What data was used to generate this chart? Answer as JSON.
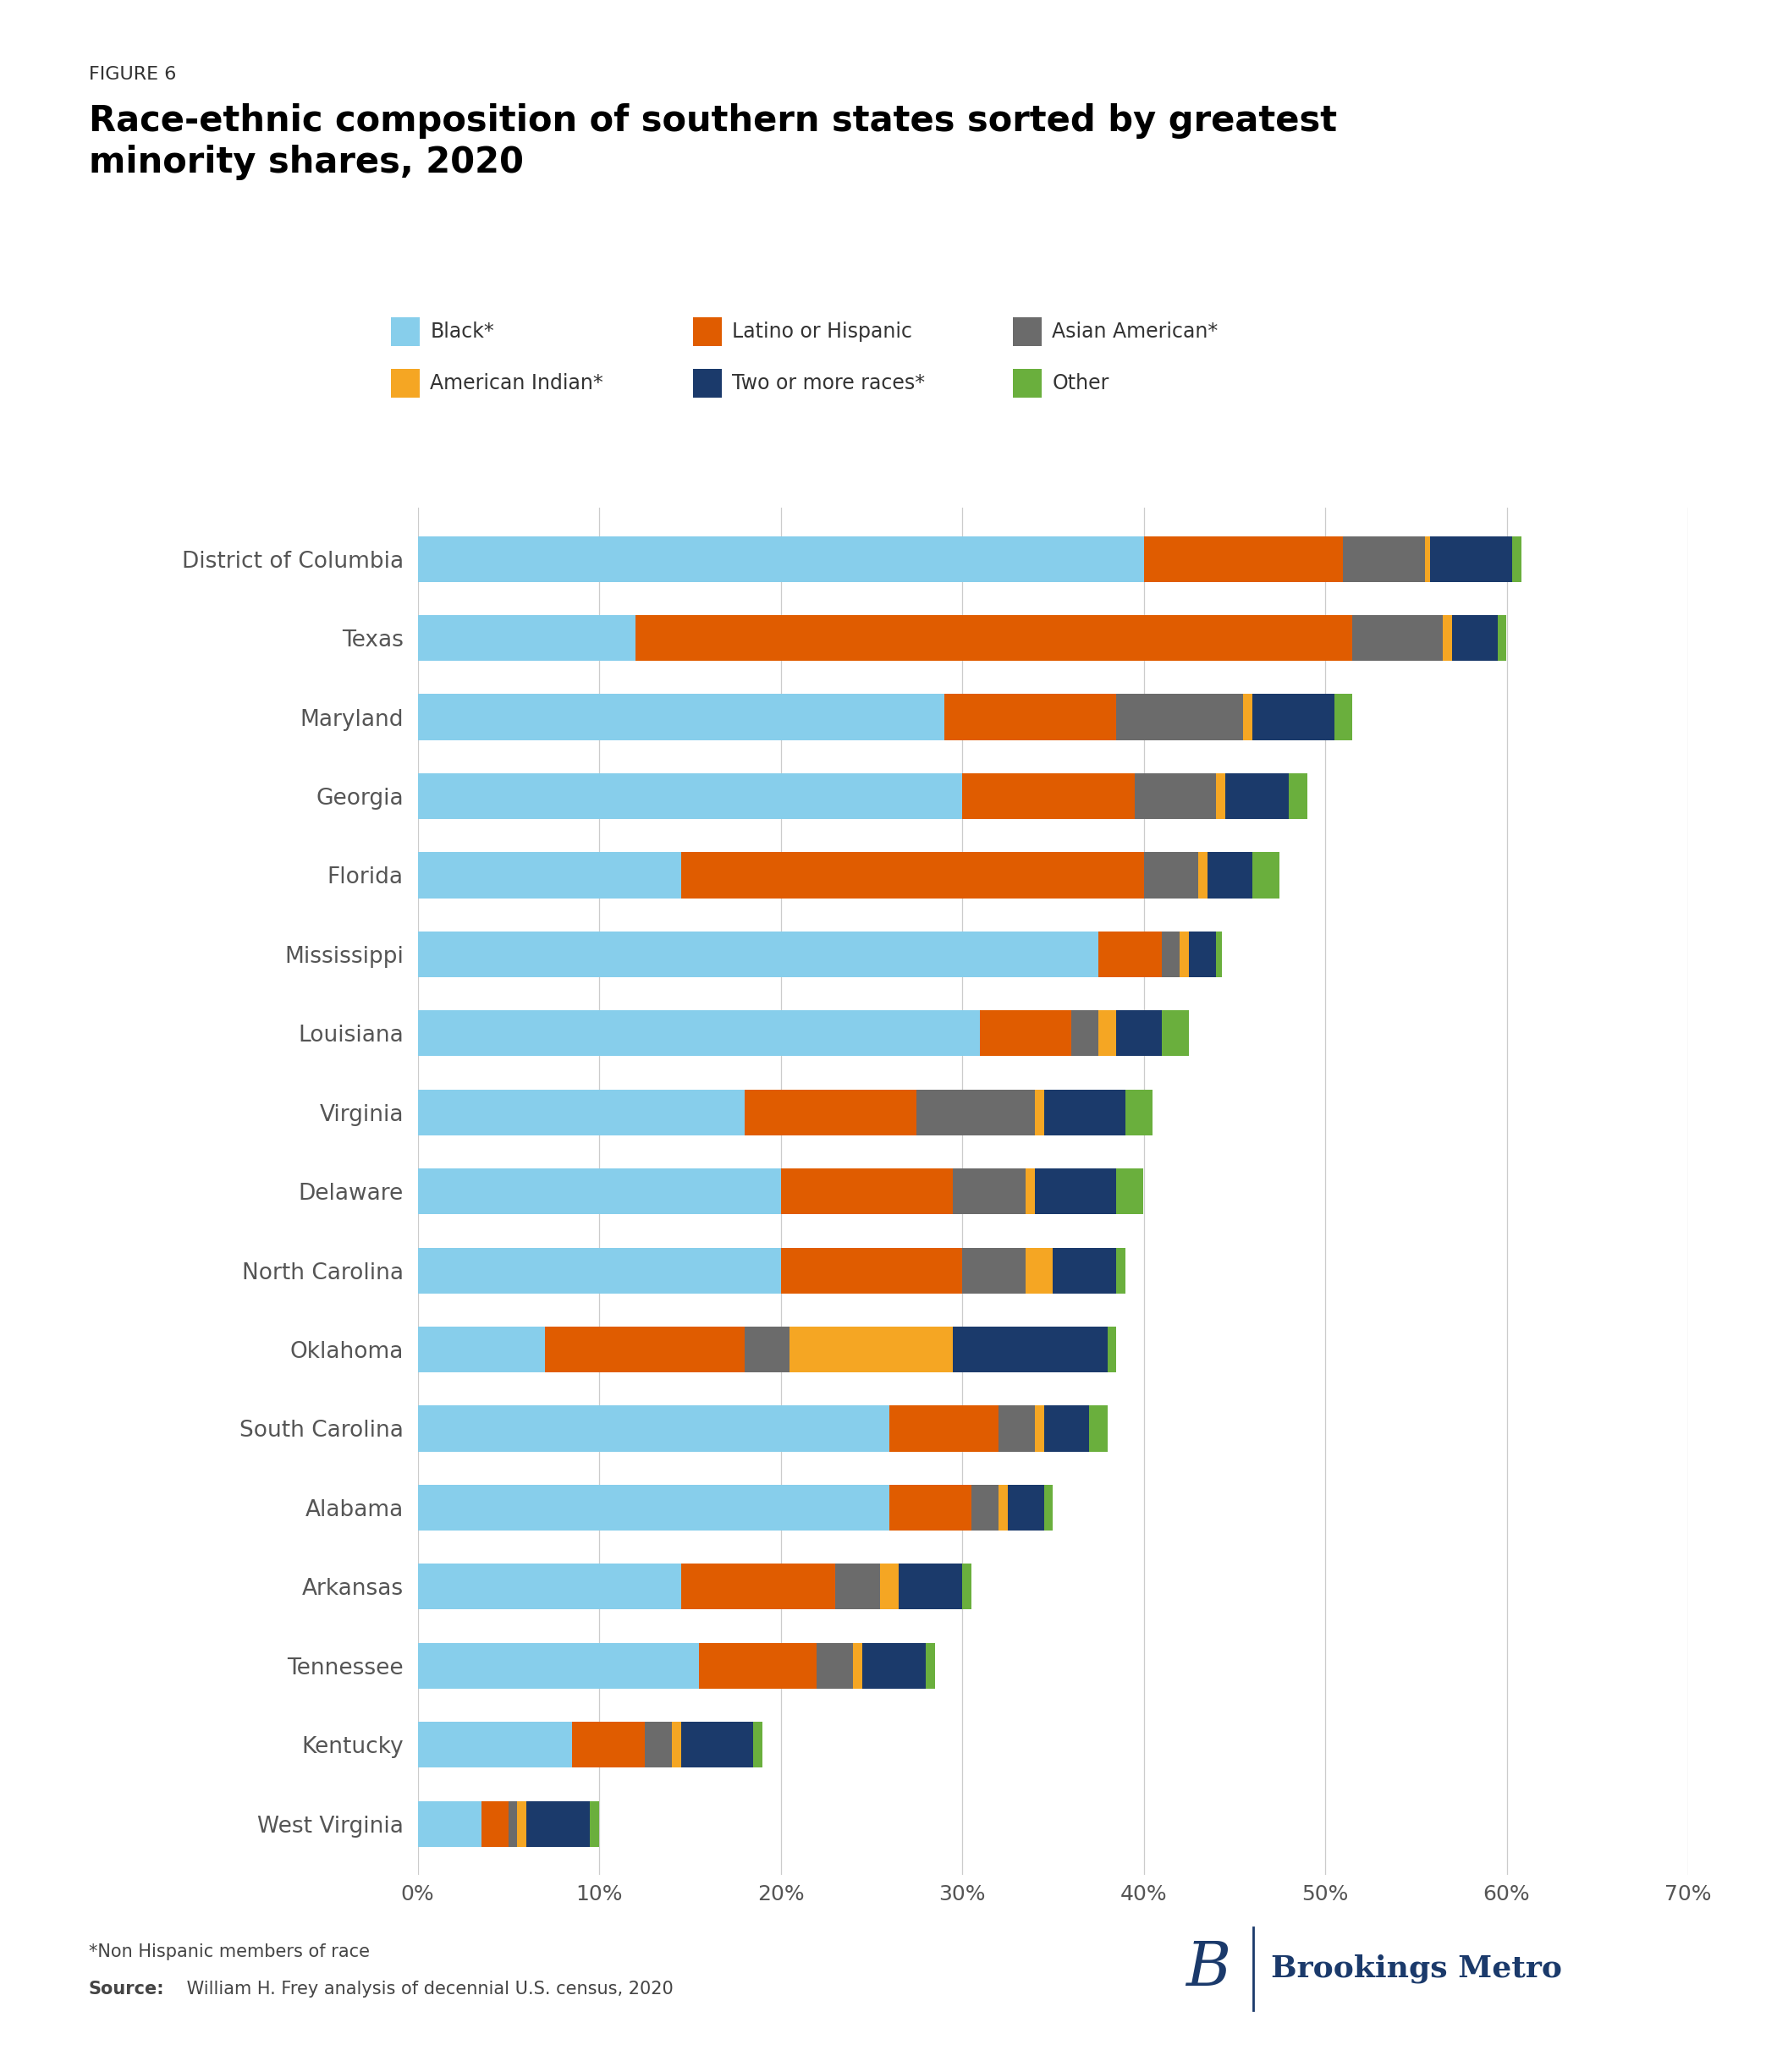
{
  "figure_label": "FIGURE 6",
  "title_line1": "Race-ethnic composition of southern states sorted by greatest",
  "title_line2": "minority shares, 2020",
  "states": [
    "District of Columbia",
    "Texas",
    "Maryland",
    "Georgia",
    "Florida",
    "Mississippi",
    "Louisiana",
    "Virginia",
    "Delaware",
    "North Carolina",
    "Oklahoma",
    "South Carolina",
    "Alabama",
    "Arkansas",
    "Tennessee",
    "Kentucky",
    "West Virginia"
  ],
  "categories": [
    "Black*",
    "Latino or Hispanic",
    "Asian American*",
    "American Indian*",
    "Two or more races*",
    "Other"
  ],
  "colors": [
    "#87CEEB",
    "#E05C00",
    "#6B6B6B",
    "#F5A623",
    "#1B3A6B",
    "#6AAF3D"
  ],
  "data": [
    [
      40.0,
      11.0,
      4.5,
      0.3,
      4.5,
      0.5
    ],
    [
      12.0,
      39.5,
      5.0,
      0.5,
      2.5,
      0.5
    ],
    [
      29.0,
      9.5,
      7.0,
      0.5,
      4.5,
      1.0
    ],
    [
      30.0,
      9.5,
      4.5,
      0.5,
      3.5,
      1.0
    ],
    [
      14.5,
      25.5,
      3.0,
      0.5,
      2.5,
      1.5
    ],
    [
      37.5,
      3.5,
      1.0,
      0.5,
      1.5,
      0.3
    ],
    [
      31.0,
      5.0,
      1.5,
      1.0,
      2.5,
      1.5
    ],
    [
      18.0,
      9.5,
      6.5,
      0.5,
      4.5,
      1.5
    ],
    [
      20.0,
      9.5,
      4.0,
      0.5,
      4.5,
      1.5
    ],
    [
      20.0,
      10.0,
      3.5,
      1.5,
      3.5,
      0.5
    ],
    [
      7.0,
      11.0,
      2.5,
      9.0,
      8.5,
      0.5
    ],
    [
      26.0,
      6.0,
      2.0,
      0.5,
      2.5,
      1.0
    ],
    [
      26.0,
      4.5,
      1.5,
      0.5,
      2.0,
      0.5
    ],
    [
      14.5,
      8.5,
      2.5,
      1.0,
      3.5,
      0.5
    ],
    [
      15.5,
      6.5,
      2.0,
      0.5,
      3.5,
      0.5
    ],
    [
      8.5,
      4.0,
      1.5,
      0.5,
      4.0,
      0.5
    ],
    [
      3.5,
      1.5,
      0.5,
      0.5,
      3.5,
      0.5
    ]
  ],
  "xlim": [
    0,
    70
  ],
  "xticks": [
    0,
    10,
    20,
    30,
    40,
    50,
    60,
    70
  ],
  "xticklabels": [
    "0%",
    "10%",
    "20%",
    "30%",
    "40%",
    "50%",
    "60%",
    "70%"
  ],
  "background_color": "#FFFFFF",
  "grid_color": "#CCCCCC",
  "bar_height": 0.58,
  "title_fontsize": 30,
  "fig_label_fontsize": 16,
  "label_fontsize": 19,
  "tick_fontsize": 18,
  "legend_fontsize": 17,
  "footnote_fontsize": 15,
  "brookings_color": "#1B3A6B",
  "footnote_line1": "*Non Hispanic members of race",
  "footnote_line2_bold": "Source:",
  "footnote_line2_rest": " William H. Frey analysis of decennial U.S. census, 2020"
}
